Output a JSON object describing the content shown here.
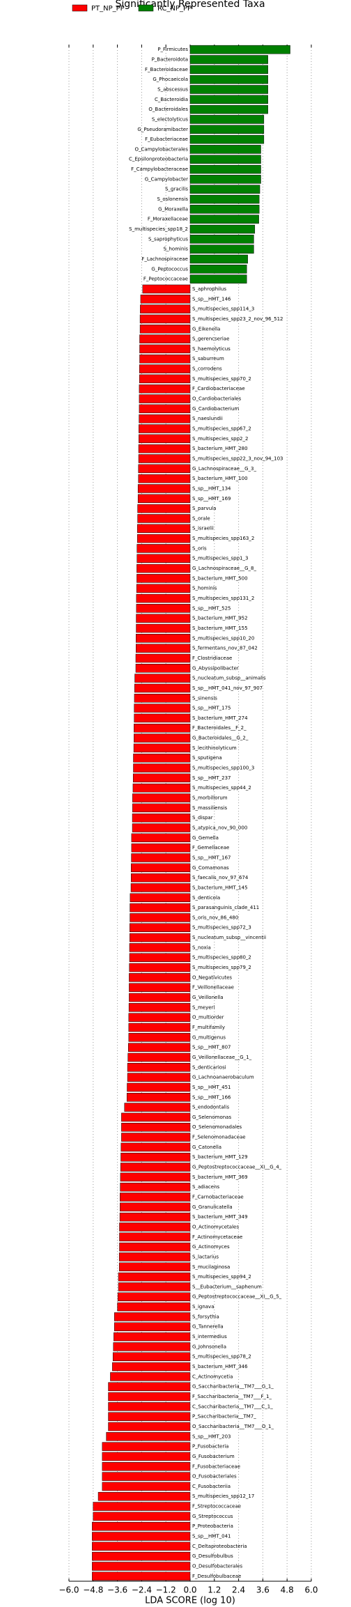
{
  "chart_data": {
    "type": "barh",
    "title": "Significantly Represented Taxa",
    "xlabel": "LDA SCORE (log 10)",
    "xlim": [
      -6,
      6
    ],
    "xticks": [
      {
        "value": -6,
        "label": "−6.0"
      },
      {
        "value": -4.8,
        "label": "−4.8"
      },
      {
        "value": -3.6,
        "label": "−3.6"
      },
      {
        "value": -2.4,
        "label": "−2.4"
      },
      {
        "value": -1.2,
        "label": "−1.2"
      },
      {
        "value": 0,
        "label": "0.0"
      },
      {
        "value": 1.2,
        "label": "1.2"
      },
      {
        "value": 2.4,
        "label": "2.4"
      },
      {
        "value": 3.6,
        "label": "3.6"
      },
      {
        "value": 4.8,
        "label": "4.8"
      },
      {
        "value": 6,
        "label": "6.0"
      }
    ],
    "grid": true,
    "series": [
      {
        "name": "RC_NP_PP",
        "color": "#008000",
        "categories": [
          "P_Firmicutes",
          "P_Bacteroidota",
          "F_Bacteroidaceae",
          "G_Phocaeicola",
          "S_abscessus",
          "C_Bacteroidia",
          "O_Bacteroidales",
          "S_electolyticus",
          "G_Pseudoramibacter",
          "F_Eubacteriaceae",
          "O_Campylobacterales",
          "C_Epsilonproteobacteria",
          "F_Campylobacteraceae",
          "G_Campylobacter",
          "S_gracilis",
          "S_oslonensis",
          "G_Moraxella",
          "F_Moraxellaceae",
          "S_multispecies_spp18_2",
          "S_saprophyticus",
          "S_hominis",
          "F_Lachnospiraceae",
          "G_Peptococcus",
          "F_Peptococcaceae"
        ],
        "values": [
          4.95,
          3.85,
          3.85,
          3.85,
          3.85,
          3.85,
          3.85,
          3.65,
          3.65,
          3.65,
          3.5,
          3.5,
          3.5,
          3.5,
          3.45,
          3.42,
          3.42,
          3.4,
          3.2,
          3.15,
          3.15,
          2.85,
          2.8,
          2.8
        ]
      },
      {
        "name": "PT_NP_PP",
        "color": "#ff0000",
        "categories": [
          "S_aphrophilus",
          "S_sp__HMT_146",
          "S_multispecies_spp114_3",
          "S_multispecies_spp23_2_nov_96_512",
          "G_Eikenella",
          "S_gerencseriae",
          "S_haemolyticus",
          "S_saburreum",
          "S_corrodens",
          "S_multispecies_spp70_2",
          "F_Cardiobacteriaceae",
          "O_Cardiobacteriales",
          "G_Cardiobacterium",
          "S_naeslundii",
          "S_multispecies_spp67_2",
          "S_multispecies_spp2_2",
          "S_bacterium_HMT_280",
          "S_multispecies_spp22_3_nov_94_103",
          "G_Lachnospiraceae__G_3_",
          "S_bacterium_HMT_100",
          "S_sp__HMT_134",
          "S_sp__HMT_169",
          "S_parvula",
          "S_orale",
          "S_israelii",
          "S_multispecies_spp163_2",
          "S_oris",
          "S_multispecies_spp1_3",
          "G_Lachnospiraceae__G_8_",
          "S_bacterium_HMT_500",
          "S_hominis",
          "S_multispecies_spp131_2",
          "S_sp__HMT_525",
          "S_bacterium_HMT_952",
          "S_bacterium_HMT_155",
          "S_multispecies_spp10_20",
          "S_fermentans_nov_87_042",
          "F_Clostridiaceae",
          "G_Abyssipolibacter",
          "S_nucleatum_subsp__animalis",
          "S_sp__HMT_041_nov_97_907",
          "S_sinensis",
          "S_sp__HMT_175",
          "S_bacterium_HMT_274",
          "F_Bacteroidales__F_2_",
          "G_Bacteroidales__G_2_",
          "S_lecithinolyticum",
          "S_sputigena",
          "S_multispecies_spp100_3",
          "S_sp__HMT_237",
          "S_multispecies_spp44_2",
          "S_morbillorum",
          "S_massiliensis",
          "S_dispar",
          "S_atypica_nov_90_000",
          "G_Gemella",
          "F_Gemellaceae",
          "S_sp__HMT_167",
          "G_Comamonas",
          "S_faecalis_nov_97_674",
          "S_bacterium_HMT_145",
          "S_denticola",
          "S_parasanguinis_clade_411",
          "S_oris_nov_86_480",
          "S_multispecies_spp72_3",
          "S_nucleatum_subsp__vincentii",
          "S_noxia",
          "S_multispecies_spp80_2",
          "S_multispecies_spp79_2",
          "O_Negativicutes",
          "F_Veillonellaceae",
          "G_Veillonella",
          "S_meyeri",
          "O_multiorder",
          "F_multifamily",
          "G_multigenus",
          "S_sp__HMT_807",
          "G_Veillonellaceae__G_1_",
          "S_denticariosi",
          "G_Lachnoanaerobaculum",
          "S_sp__HMT_451",
          "S_sp__HMT_166",
          "S_endodontalis",
          "G_Selenomonas",
          "O_Selenomonadales",
          "F_Selenomonadaceae",
          "G_Catonella",
          "S_bacterium_HMT_129",
          "G_Peptostreptococcaceae__XI__G_4_",
          "S_bacterium_HMT_369",
          "S_adiacens",
          "F_Carnobacteriaceae",
          "G_Granulicatella",
          "S_bacterium_HMT_349",
          "O_Actinomycetales",
          "F_Actinomycetaceae",
          "G_Actinomyces",
          "S_lactarius",
          "S_mucilaginosa",
          "S_multispecies_spp94_2",
          "S__Eubacterium__saphenum",
          "G_Peptostreptococcaceae__XI__G_5_",
          "S_ignava",
          "S_forsythia",
          "G_Tannerella",
          "S_intermedius",
          "G_Johnsonella",
          "S_multispecies_spp78_2",
          "S_bacterium_HMT_346",
          "C_Actinomycetia",
          "G_Saccharibacteria__TM7___G_1_",
          "F_Saccharibacteria__TM7___F_1_",
          "C_Saccharibacteria__TM7___C_1_",
          "P_Saccharibacteria__TM7_",
          "O_Saccharibacteria__TM7___O_1_",
          "S_sp__HMT_203",
          "P_Fusobacteria",
          "G_Fusobacterium",
          "F_Fusobacteriaceae",
          "O_Fusobacteriales",
          "C_Fusobacteriia",
          "S_multispecies_spp12_17",
          "F_Streptococcaceae",
          "G_Streptococcus",
          "P_Proteobacteria",
          "S_sp__HMT_041",
          "C_Deltaproteobacteria",
          "G_Desulfobulbus",
          "O_Desulfobacterales",
          "F_Desulfobulbaceae"
        ],
        "values": [
          -2.35,
          -2.45,
          -2.47,
          -2.48,
          -2.48,
          -2.5,
          -2.5,
          -2.5,
          -2.51,
          -2.51,
          -2.52,
          -2.52,
          -2.52,
          -2.53,
          -2.54,
          -2.54,
          -2.55,
          -2.55,
          -2.56,
          -2.56,
          -2.58,
          -2.58,
          -2.6,
          -2.6,
          -2.61,
          -2.61,
          -2.63,
          -2.63,
          -2.64,
          -2.64,
          -2.65,
          -2.66,
          -2.66,
          -2.67,
          -2.67,
          -2.68,
          -2.68,
          -2.69,
          -2.69,
          -2.74,
          -2.75,
          -2.76,
          -2.77,
          -2.77,
          -2.78,
          -2.78,
          -2.79,
          -2.81,
          -2.81,
          -2.82,
          -2.83,
          -2.85,
          -2.85,
          -2.86,
          -2.86,
          -2.9,
          -2.9,
          -2.91,
          -2.92,
          -2.92,
          -2.93,
          -2.97,
          -2.98,
          -2.98,
          -2.99,
          -2.99,
          -3.0,
          -3.0,
          -3.01,
          -3.02,
          -3.02,
          -3.02,
          -3.03,
          -3.04,
          -3.04,
          -3.04,
          -3.06,
          -3.08,
          -3.1,
          -3.1,
          -3.12,
          -3.13,
          -3.25,
          -3.4,
          -3.4,
          -3.4,
          -3.42,
          -3.43,
          -3.44,
          -3.45,
          -3.46,
          -3.47,
          -3.47,
          -3.48,
          -3.5,
          -3.5,
          -3.5,
          -3.51,
          -3.51,
          -3.55,
          -3.55,
          -3.58,
          -3.6,
          -3.75,
          -3.75,
          -3.78,
          -3.8,
          -3.82,
          -3.85,
          -3.95,
          -4.05,
          -4.05,
          -4.05,
          -4.05,
          -4.05,
          -4.15,
          -4.35,
          -4.35,
          -4.35,
          -4.35,
          -4.35,
          -4.55,
          -4.8,
          -4.8,
          -4.85,
          -4.85,
          -4.85,
          -4.85,
          -4.85,
          -4.85
        ]
      }
    ]
  }
}
